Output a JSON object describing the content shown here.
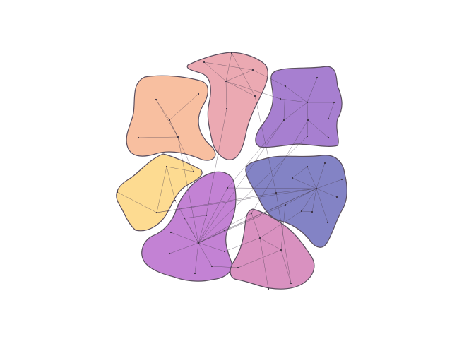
{
  "diagram": {
    "type": "clustered network graph",
    "clusters": [
      {
        "id": "peach",
        "color": "#f8bfa0"
      },
      {
        "id": "pink",
        "color": "#eba9b2"
      },
      {
        "id": "violet",
        "color": "#a77fd0"
      },
      {
        "id": "yellow",
        "color": "#fddb91"
      },
      {
        "id": "purple",
        "color": "#c382d4"
      },
      {
        "id": "indigo",
        "color": "#8383c5"
      },
      {
        "id": "mauve",
        "color": "#d991c0"
      }
    ]
  }
}
